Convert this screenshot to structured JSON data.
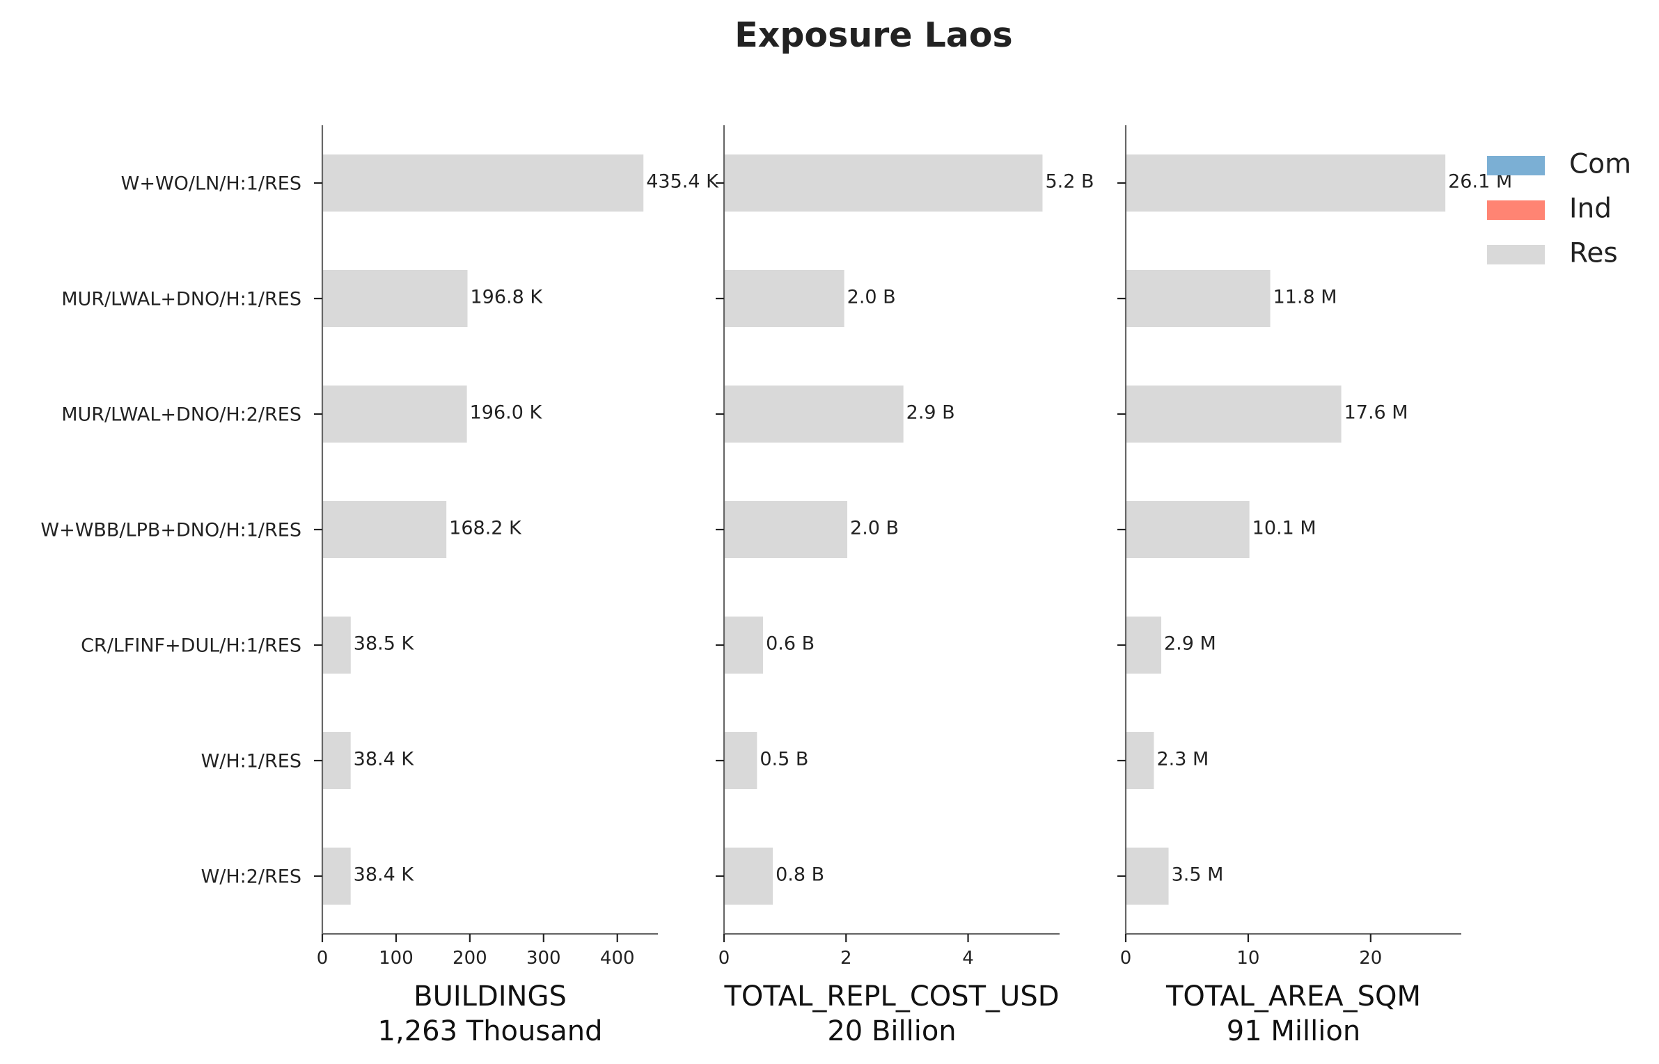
{
  "chart_data": {
    "type": "bar",
    "orientation": "horizontal",
    "title": "Exposure Laos",
    "categories": [
      "W+WO/LN/H:1/RES",
      "MUR/LWAL+DNO/H:1/RES",
      "MUR/LWAL+DNO/H:2/RES",
      "W+WBB/LPB+DNO/H:1/RES",
      "CR/LFINF+DUL/H:1/RES",
      "W/H:1/RES",
      "W/H:2/RES"
    ],
    "legend": {
      "placement": "top-right",
      "entries": [
        {
          "label": "Com",
          "color": "#7bafd4"
        },
        {
          "label": "Ind",
          "color": "#ff8473"
        },
        {
          "label": "Res",
          "color": "#d9d9d9"
        }
      ]
    },
    "panels": [
      {
        "xlabel": "BUILDINGS",
        "subtitle": "1,263 Thousand",
        "xlim": [
          0,
          455
        ],
        "xticks": [
          0,
          100,
          200,
          300,
          400
        ],
        "series": [
          {
            "name": "Res",
            "color": "#d9d9d9",
            "values": [
              435.4,
              196.8,
              196.0,
              168.2,
              38.5,
              38.4,
              38.4
            ]
          }
        ],
        "data_labels": [
          "435.4 K",
          "196.8 K",
          "196.0 K",
          "168.2 K",
          "38.5 K",
          "38.4 K",
          "38.4 K"
        ]
      },
      {
        "xlabel": "TOTAL_REPL_COST_USD",
        "subtitle": "20 Billion",
        "xlim": [
          0,
          5.5
        ],
        "xticks": [
          0,
          2,
          4
        ],
        "series": [
          {
            "name": "Res",
            "color": "#d9d9d9",
            "values": [
              5.22,
              1.97,
              2.94,
              2.02,
              0.64,
              0.54,
              0.8
            ]
          }
        ],
        "data_labels": [
          "5.2 B",
          "2.0 B",
          "2.9 B",
          "2.0 B",
          "0.6 B",
          "0.5 B",
          "0.8 B"
        ]
      },
      {
        "xlabel": "TOTAL_AREA_SQM",
        "subtitle": "91 Million",
        "xlim": [
          0,
          27.4
        ],
        "xticks": [
          0,
          10,
          20
        ],
        "series": [
          {
            "name": "Res",
            "color": "#d9d9d9",
            "values": [
              26.1,
              11.8,
              17.6,
              10.1,
              2.9,
              2.3,
              3.5
            ]
          }
        ],
        "data_labels": [
          "26.1 M",
          "11.8 M",
          "17.6 M",
          "10.1 M",
          "2.9 M",
          "2.3 M",
          "3.5 M"
        ]
      }
    ]
  }
}
